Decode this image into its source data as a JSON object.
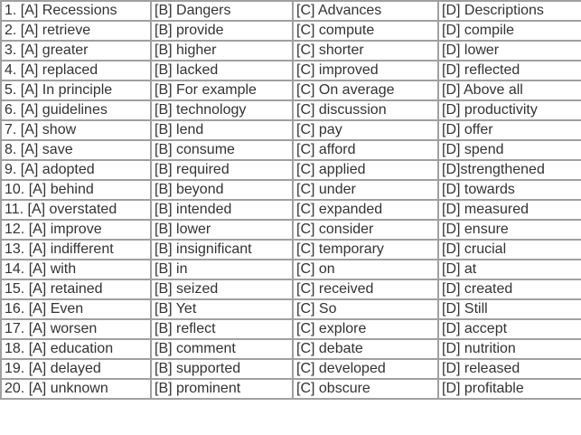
{
  "rows": [
    [
      "1. [A] Recessions",
      "[B] Dangers",
      "[C] Advances",
      "[D] Descriptions"
    ],
    [
      "2. [A] retrieve",
      "[B] provide",
      "[C] compute",
      "[D] compile"
    ],
    [
      "3. [A] greater",
      "[B] higher",
      "[C] shorter",
      "[D] lower"
    ],
    [
      "4. [A] replaced",
      "[B] lacked",
      "[C] improved",
      "[D] reflected"
    ],
    [
      "5. [A] In principle",
      "[B] For example",
      "[C] On average",
      "[D] Above all"
    ],
    [
      "6. [A] guidelines",
      "[B] technology",
      "[C] discussion",
      "[D] productivity"
    ],
    [
      "7. [A] show",
      "[B] lend",
      "[C] pay",
      "[D] offer"
    ],
    [
      "8. [A] save",
      "[B] consume",
      "[C] afford",
      "[D] spend"
    ],
    [
      "9. [A] adopted",
      "[B] required",
      "[C] applied",
      "[D]strengthened"
    ],
    [
      "10. [A] behind",
      "[B] beyond",
      "[C] under",
      "[D] towards"
    ],
    [
      "11. [A] overstated",
      "[B] intended",
      "[C] expanded",
      "[D] measured"
    ],
    [
      "12. [A] improve",
      "[B] lower",
      "[C] consider",
      "[D] ensure"
    ],
    [
      "13. [A] indifferent",
      "[B] insignificant",
      "[C] temporary",
      "[D] crucial"
    ],
    [
      "14. [A] with",
      "[B] in",
      "[C] on",
      "[D] at"
    ],
    [
      "15. [A] retained",
      "[B] seized",
      "[C] received",
      "[D] created"
    ],
    [
      "16. [A] Even",
      "[B] Yet",
      "[C] So",
      "[D] Still"
    ],
    [
      "17. [A] worsen",
      "[B] reflect",
      "[C] explore",
      "[D] accept"
    ],
    [
      "18. [A] education",
      "[B] comment",
      "[C] debate",
      "[D] nutrition"
    ],
    [
      "19. [A] delayed",
      "[B] supported",
      "[C] developed",
      "[D] released"
    ],
    [
      "20. [A] unknown",
      "[B] prominent",
      "[C] obscure",
      "[D] profitable"
    ]
  ]
}
